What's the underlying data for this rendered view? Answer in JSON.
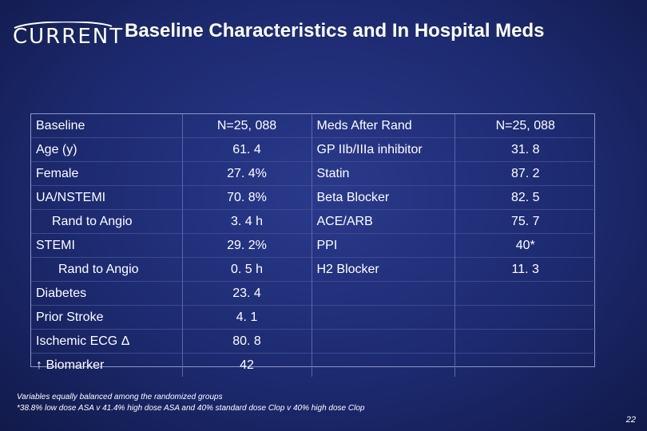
{
  "logo": {
    "text": "CURRENT"
  },
  "title": "Baseline Characteristics and In Hospital Meds",
  "table": {
    "rows": [
      [
        "Baseline",
        "N=25, 088",
        "Meds After Rand",
        "N=25, 088"
      ],
      [
        "Age (y)",
        "61. 4",
        "GP IIb/IIIa inhibitor",
        "31. 8"
      ],
      [
        "Female",
        "27. 4%",
        "Statin",
        "87. 2"
      ],
      [
        "UA/NSTEMI",
        "70. 8%",
        "Beta Blocker",
        "82. 5"
      ],
      [
        "Rand to Angio",
        "3. 4 h",
        "ACE/ARB",
        "75. 7"
      ],
      [
        "STEMI",
        "29. 2%",
        "PPI",
        "40*"
      ],
      [
        "Rand to Angio",
        "0. 5 h",
        "H2 Blocker",
        "11. 3"
      ],
      [
        "Diabetes",
        "23. 4",
        "",
        ""
      ],
      [
        "Prior Stroke",
        "4. 1",
        "",
        ""
      ],
      [
        "Ischemic ECG Δ",
        "80. 8",
        "",
        ""
      ],
      [
        "↑ Biomarker",
        "42",
        "",
        ""
      ]
    ]
  },
  "footnotes": [
    "Variables equally balanced among the randomized groups",
    "*38.8% low dose ASA v 41.4% high dose ASA and 40% standard dose Clop v 40% high dose Clop"
  ],
  "page_number": "22"
}
